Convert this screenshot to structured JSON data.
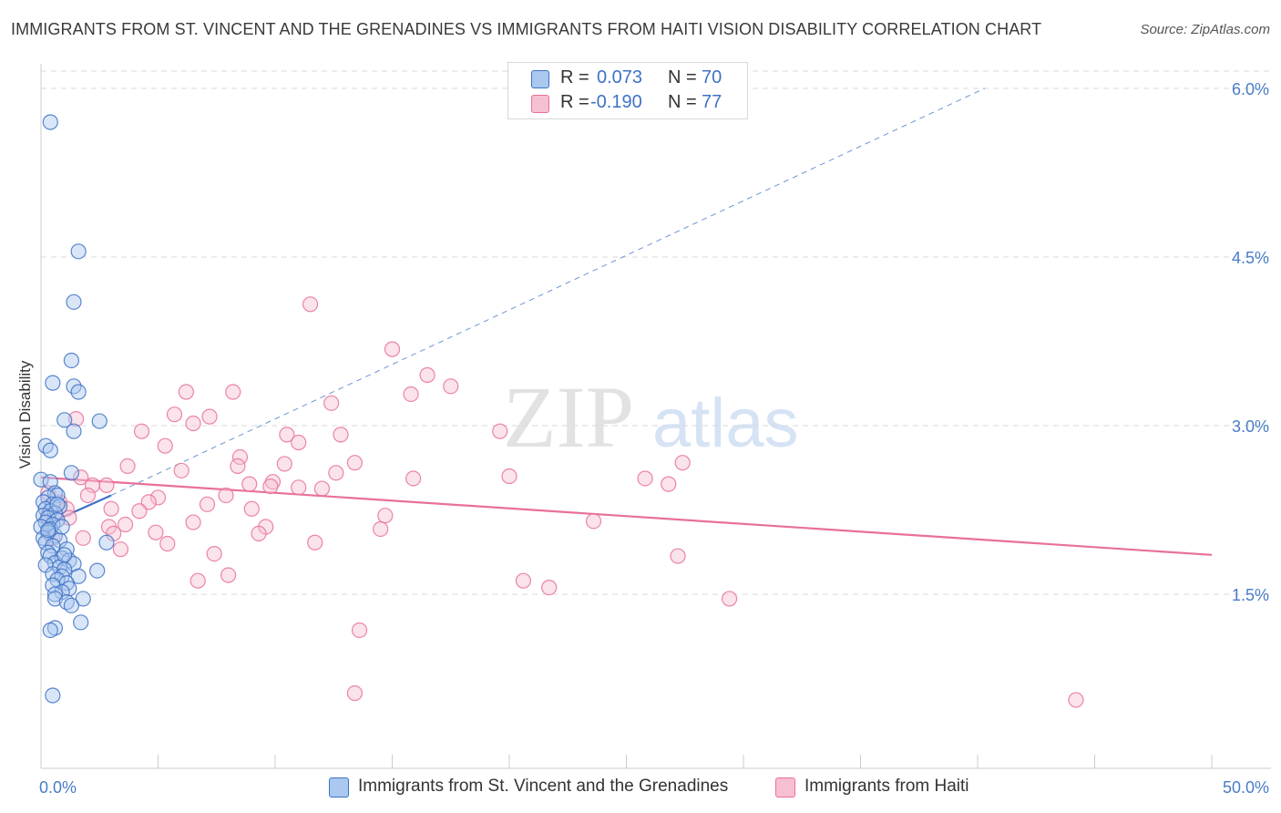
{
  "title": "IMMIGRANTS FROM ST. VINCENT AND THE GRENADINES VS IMMIGRANTS FROM HAITI VISION DISABILITY CORRELATION CHART",
  "source": "Source: ZipAtlas.com",
  "watermark": {
    "zip": "ZIP",
    "atlas": "atlas"
  },
  "colors": {
    "blue": "#3d72c4",
    "blue_fill": "#aac8f0",
    "pink": "#e8709a",
    "pink_fill": "#f7c0d2",
    "grid": "#d9d9d9",
    "axis_text": "#4a7cc7"
  },
  "legend_top": {
    "rows": [
      {
        "r_label": "R =",
        "r_value": "0.073",
        "n_label": "N =",
        "n_value": "70"
      },
      {
        "r_label": "R =",
        "r_value": "-0.190",
        "n_label": "N =",
        "n_value": "77"
      }
    ]
  },
  "legend_bottom": {
    "items": [
      {
        "label": "Immigrants from St. Vincent and the Grenadines"
      },
      {
        "label": "Immigrants from Haiti"
      }
    ]
  },
  "chart_data": {
    "type": "scatter",
    "title": "IMMIGRANTS FROM ST. VINCENT AND THE GRENADINES VS IMMIGRANTS FROM HAITI VISION DISABILITY CORRELATION CHART",
    "xlabel": "",
    "ylabel": "Vision Disability",
    "xlim": [
      0,
      50
    ],
    "ylim": [
      0,
      6.3
    ],
    "x_tick_labels": [
      "0.0%",
      "50.0%"
    ],
    "y_ticks": [
      1.5,
      3.0,
      4.5,
      6.0
    ],
    "y_tick_labels": [
      "1.5%",
      "3.0%",
      "4.5%",
      "6.0%"
    ],
    "grid": true,
    "series": [
      {
        "name": "Immigrants from St. Vincent and the Grenadines",
        "r": 0.073,
        "n": 70,
        "trend": {
          "x0": 0,
          "y0": 2.1,
          "x1": 3.0,
          "y1": 2.38
        },
        "trend_extended": {
          "x0": 3.0,
          "y0": 2.38,
          "x1": 40.3,
          "y1": 6.0
        },
        "points": [
          [
            0.4,
            5.7
          ],
          [
            1.6,
            4.55
          ],
          [
            1.4,
            4.1
          ],
          [
            1.3,
            3.58
          ],
          [
            0.5,
            3.38
          ],
          [
            1.4,
            3.35
          ],
          [
            1.6,
            3.3
          ],
          [
            1.0,
            3.05
          ],
          [
            2.5,
            3.04
          ],
          [
            1.4,
            2.95
          ],
          [
            0.2,
            2.82
          ],
          [
            0.4,
            2.78
          ],
          [
            1.3,
            2.58
          ],
          [
            0.0,
            2.52
          ],
          [
            0.4,
            2.5
          ],
          [
            0.6,
            2.4
          ],
          [
            0.7,
            2.38
          ],
          [
            0.3,
            2.36
          ],
          [
            0.1,
            2.32
          ],
          [
            0.5,
            2.3
          ],
          [
            0.8,
            2.28
          ],
          [
            0.2,
            2.26
          ],
          [
            0.4,
            2.24
          ],
          [
            0.6,
            2.22
          ],
          [
            0.1,
            2.2
          ],
          [
            0.3,
            2.18
          ],
          [
            0.7,
            2.16
          ],
          [
            0.2,
            2.14
          ],
          [
            0.5,
            2.12
          ],
          [
            0.0,
            2.1
          ],
          [
            0.4,
            2.08
          ],
          [
            0.3,
            2.05
          ],
          [
            0.6,
            2.02
          ],
          [
            0.1,
            2.0
          ],
          [
            0.8,
            1.98
          ],
          [
            0.2,
            1.96
          ],
          [
            0.5,
            1.93
          ],
          [
            1.1,
            1.9
          ],
          [
            0.3,
            1.87
          ],
          [
            2.8,
            1.96
          ],
          [
            0.4,
            1.84
          ],
          [
            0.9,
            1.82
          ],
          [
            1.2,
            1.8
          ],
          [
            0.6,
            1.78
          ],
          [
            0.2,
            1.76
          ],
          [
            1.4,
            1.77
          ],
          [
            0.8,
            1.74
          ],
          [
            1.0,
            1.72
          ],
          [
            2.4,
            1.71
          ],
          [
            0.5,
            1.68
          ],
          [
            0.9,
            1.66
          ],
          [
            1.6,
            1.66
          ],
          [
            0.7,
            1.63
          ],
          [
            1.1,
            1.6
          ],
          [
            0.5,
            1.58
          ],
          [
            1.2,
            1.55
          ],
          [
            0.9,
            1.52
          ],
          [
            0.6,
            1.5
          ],
          [
            1.8,
            1.46
          ],
          [
            0.6,
            1.46
          ],
          [
            1.1,
            1.43
          ],
          [
            1.3,
            1.4
          ],
          [
            1.7,
            1.25
          ],
          [
            0.6,
            1.2
          ],
          [
            0.4,
            1.18
          ],
          [
            0.5,
            0.6
          ],
          [
            0.3,
            2.07
          ],
          [
            0.7,
            2.3
          ],
          [
            0.9,
            2.1
          ],
          [
            1.0,
            1.85
          ]
        ]
      },
      {
        "name": "Immigrants from Haiti",
        "r": -0.19,
        "n": 77,
        "trend": {
          "x0": 0,
          "y0": 2.54,
          "x1": 50,
          "y1": 1.85
        },
        "points": [
          [
            11.5,
            4.08
          ],
          [
            15.0,
            3.68
          ],
          [
            16.5,
            3.45
          ],
          [
            17.5,
            3.35
          ],
          [
            6.2,
            3.3
          ],
          [
            8.2,
            3.3
          ],
          [
            15.8,
            3.28
          ],
          [
            12.4,
            3.2
          ],
          [
            5.7,
            3.1
          ],
          [
            7.2,
            3.08
          ],
          [
            1.5,
            3.06
          ],
          [
            6.5,
            3.02
          ],
          [
            4.3,
            2.95
          ],
          [
            10.5,
            2.92
          ],
          [
            19.6,
            2.95
          ],
          [
            12.8,
            2.92
          ],
          [
            11.0,
            2.85
          ],
          [
            5.3,
            2.82
          ],
          [
            8.5,
            2.72
          ],
          [
            10.4,
            2.66
          ],
          [
            13.4,
            2.67
          ],
          [
            27.4,
            2.67
          ],
          [
            3.7,
            2.64
          ],
          [
            8.4,
            2.64
          ],
          [
            6.0,
            2.6
          ],
          [
            12.6,
            2.58
          ],
          [
            20.0,
            2.55
          ],
          [
            25.8,
            2.53
          ],
          [
            15.9,
            2.53
          ],
          [
            1.7,
            2.54
          ],
          [
            9.9,
            2.5
          ],
          [
            8.9,
            2.48
          ],
          [
            9.8,
            2.46
          ],
          [
            2.8,
            2.47
          ],
          [
            2.2,
            2.47
          ],
          [
            11.0,
            2.45
          ],
          [
            12.0,
            2.44
          ],
          [
            26.8,
            2.48
          ],
          [
            0.3,
            2.4
          ],
          [
            2.0,
            2.38
          ],
          [
            5.0,
            2.36
          ],
          [
            7.9,
            2.38
          ],
          [
            0.8,
            2.32
          ],
          [
            4.6,
            2.32
          ],
          [
            7.1,
            2.3
          ],
          [
            1.1,
            2.26
          ],
          [
            3.0,
            2.26
          ],
          [
            9.0,
            2.26
          ],
          [
            4.2,
            2.24
          ],
          [
            0.6,
            2.22
          ],
          [
            14.7,
            2.2
          ],
          [
            0.3,
            2.2
          ],
          [
            1.2,
            2.18
          ],
          [
            23.6,
            2.15
          ],
          [
            6.5,
            2.14
          ],
          [
            3.6,
            2.12
          ],
          [
            2.9,
            2.1
          ],
          [
            9.6,
            2.1
          ],
          [
            14.5,
            2.08
          ],
          [
            9.3,
            2.04
          ],
          [
            4.9,
            2.05
          ],
          [
            3.1,
            2.04
          ],
          [
            0.5,
            2.0
          ],
          [
            1.8,
            2.0
          ],
          [
            11.7,
            1.96
          ],
          [
            5.4,
            1.95
          ],
          [
            3.4,
            1.9
          ],
          [
            7.4,
            1.86
          ],
          [
            27.2,
            1.84
          ],
          [
            8.0,
            1.67
          ],
          [
            6.7,
            1.62
          ],
          [
            20.6,
            1.62
          ],
          [
            21.7,
            1.56
          ],
          [
            29.4,
            1.46
          ],
          [
            13.6,
            1.18
          ],
          [
            13.4,
            0.62
          ],
          [
            44.2,
            0.56
          ]
        ]
      }
    ]
  }
}
